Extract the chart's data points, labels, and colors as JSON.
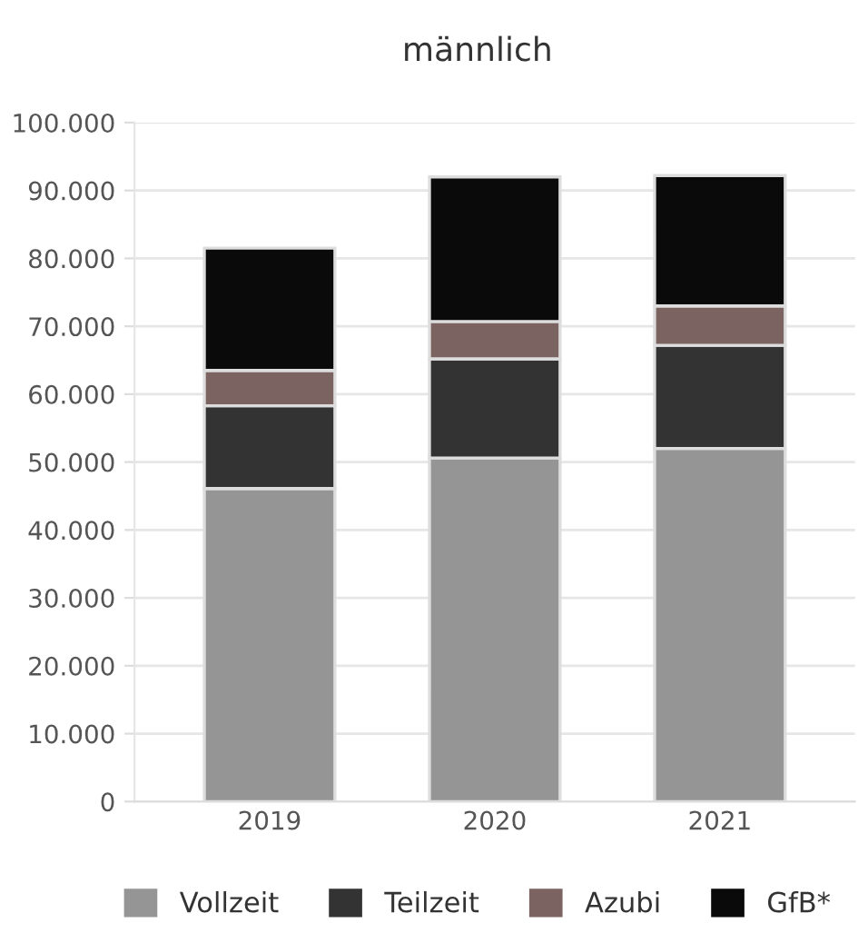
{
  "chart_data": {
    "type": "bar",
    "title": "männlich",
    "stacked": true,
    "categories": [
      "2019",
      "2020",
      "2021"
    ],
    "series": [
      {
        "name": "Vollzeit",
        "color": "#959595",
        "values": [
          46100,
          50600,
          52000
        ]
      },
      {
        "name": "Teilzeit",
        "color": "#333333",
        "values": [
          12200,
          14600,
          15200
        ]
      },
      {
        "name": "Azubi",
        "color": "#7a6360",
        "values": [
          5200,
          5500,
          5800
        ]
      },
      {
        "name": "GfB*",
        "color": "#0a0a0a",
        "values": [
          18000,
          21300,
          19200
        ]
      }
    ],
    "ylim": [
      0,
      100000
    ],
    "yticks": [
      {
        "value": 0,
        "label": "0"
      },
      {
        "value": 10000,
        "label": "10.000"
      },
      {
        "value": 20000,
        "label": "20.000"
      },
      {
        "value": 30000,
        "label": "30.000"
      },
      {
        "value": 40000,
        "label": "40.000"
      },
      {
        "value": 50000,
        "label": "50.000"
      },
      {
        "value": 60000,
        "label": "60.000"
      },
      {
        "value": 70000,
        "label": "70.000"
      },
      {
        "value": 80000,
        "label": "80.000"
      },
      {
        "value": 90000,
        "label": "90.000"
      },
      {
        "value": 100000,
        "label": "100.000"
      }
    ],
    "grid": "y",
    "legend": "bottom"
  }
}
